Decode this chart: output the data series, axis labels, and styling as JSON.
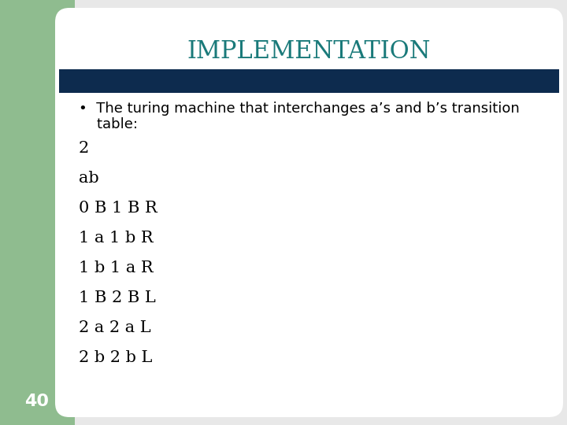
{
  "title": "IMPLEMENTATION",
  "title_color": "#1a7a7a",
  "title_fontsize": 22,
  "bar_color": "#0d2b4e",
  "bullet_line1": "•  The turing machine that interchanges a’s and b’s transition",
  "bullet_line2": "    table:",
  "content_lines": [
    "2",
    "ab",
    "0 B 1 B R",
    "1 a 1 b R",
    "1 b 1 a R",
    "1 B 2 B L",
    "2 a 2 a L",
    "2 b 2 b L"
  ],
  "content_fontsize": 13,
  "bullet_fontsize": 13,
  "content_color": "#000000",
  "page_number": "40",
  "page_num_color": "#ffffff",
  "page_num_fontsize": 16,
  "bg_color": "#ffffff",
  "left_panel_color": "#8fbc8f",
  "slide_bg": "#e8e8e8"
}
